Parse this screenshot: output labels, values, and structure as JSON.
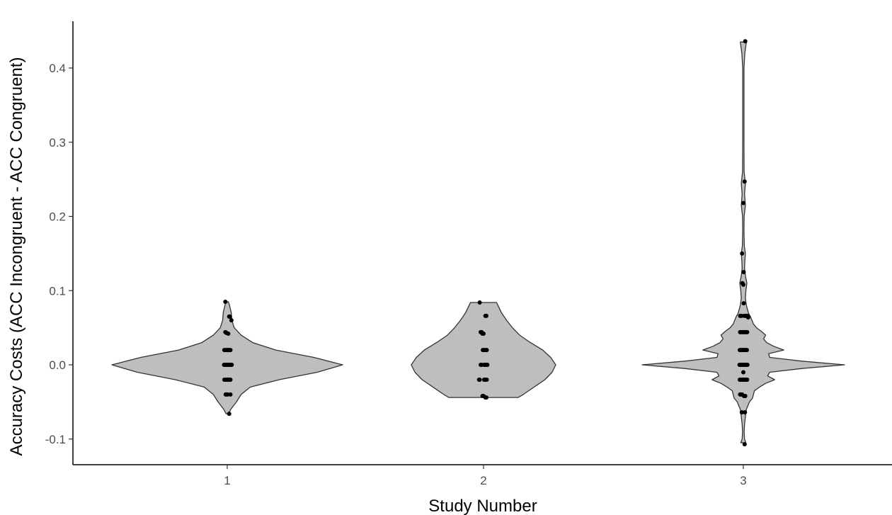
{
  "chart_data": {
    "type": "violin",
    "title": "",
    "xlabel": "Study Number",
    "ylabel": "Accuracy Costs (ACC Incongruent - ACC Congruent)",
    "categories": [
      "1",
      "2",
      "3"
    ],
    "ylim": [
      -0.13,
      0.465
    ],
    "yticks": [
      -0.1,
      0.0,
      0.1,
      0.2,
      0.3,
      0.4
    ],
    "ytick_labels": [
      "-0.1",
      "0.0",
      "0.1",
      "0.2",
      "0.3",
      "0.4"
    ],
    "grid": false,
    "legend": "none",
    "violin_fill": "#bebebe",
    "violin_stroke": "#333333",
    "point_color": "#000000",
    "violins": [
      {
        "category": "1",
        "profile": [
          [
            -0.066,
            0.01
          ],
          [
            -0.06,
            0.03
          ],
          [
            -0.05,
            0.08
          ],
          [
            -0.04,
            0.12
          ],
          [
            -0.03,
            0.2
          ],
          [
            -0.02,
            0.45
          ],
          [
            -0.01,
            0.78
          ],
          [
            0.0,
            1.0
          ],
          [
            0.01,
            0.75
          ],
          [
            0.02,
            0.42
          ],
          [
            0.03,
            0.22
          ],
          [
            0.04,
            0.12
          ],
          [
            0.05,
            0.06
          ],
          [
            0.06,
            0.04
          ],
          [
            0.07,
            0.035
          ],
          [
            0.08,
            0.02
          ],
          [
            0.085,
            0.01
          ]
        ],
        "points": [
          [
            0.085,
            -0.06
          ],
          [
            0.065,
            0.06
          ],
          [
            0.065,
            0.08
          ],
          [
            0.06,
            0.13
          ],
          [
            0.044,
            -0.06
          ],
          [
            0.043,
            -0.02
          ],
          [
            0.042,
            0.03
          ],
          [
            0.02,
            -0.09
          ],
          [
            0.02,
            -0.05
          ],
          [
            0.02,
            -0.02
          ],
          [
            0.02,
            0.01
          ],
          [
            0.02,
            0.04
          ],
          [
            0.02,
            0.07
          ],
          [
            0.02,
            0.1
          ],
          [
            0.0,
            -0.1
          ],
          [
            0.0,
            -0.07
          ],
          [
            0.0,
            -0.04
          ],
          [
            0.0,
            -0.01
          ],
          [
            0.0,
            0.02
          ],
          [
            0.0,
            0.05
          ],
          [
            0.0,
            0.08
          ],
          [
            0.0,
            0.11
          ],
          [
            0.0,
            0.14
          ],
          [
            -0.02,
            -0.09
          ],
          [
            -0.02,
            -0.06
          ],
          [
            -0.02,
            -0.03
          ],
          [
            -0.02,
            0.0
          ],
          [
            -0.02,
            0.03
          ],
          [
            -0.02,
            0.06
          ],
          [
            -0.02,
            0.1
          ],
          [
            -0.04,
            -0.05
          ],
          [
            -0.04,
            -0.02
          ],
          [
            -0.04,
            0.01
          ],
          [
            -0.04,
            0.1
          ],
          [
            -0.066,
            0.06
          ]
        ]
      },
      {
        "category": "2",
        "profile": [
          [
            -0.044,
            0.48
          ],
          [
            -0.04,
            0.55
          ],
          [
            -0.03,
            0.7
          ],
          [
            -0.02,
            0.85
          ],
          [
            -0.01,
            0.95
          ],
          [
            0.0,
            1.0
          ],
          [
            0.01,
            0.93
          ],
          [
            0.02,
            0.82
          ],
          [
            0.03,
            0.65
          ],
          [
            0.04,
            0.5
          ],
          [
            0.05,
            0.4
          ],
          [
            0.06,
            0.32
          ],
          [
            0.07,
            0.25
          ],
          [
            0.08,
            0.2
          ],
          [
            0.084,
            0.18
          ]
        ],
        "points": [
          [
            0.084,
            -0.12
          ],
          [
            0.066,
            0.06
          ],
          [
            0.066,
            0.09
          ],
          [
            0.044,
            -0.09
          ],
          [
            0.044,
            -0.06
          ],
          [
            0.042,
            -0.03
          ],
          [
            0.042,
            0.0
          ],
          [
            0.02,
            -0.02
          ],
          [
            0.02,
            0.02
          ],
          [
            0.02,
            0.06
          ],
          [
            0.02,
            0.1
          ],
          [
            0.0,
            -0.09
          ],
          [
            0.0,
            -0.06
          ],
          [
            0.0,
            0.02
          ],
          [
            0.0,
            0.05
          ],
          [
            0.0,
            0.08
          ],
          [
            0.0,
            0.12
          ],
          [
            -0.02,
            -0.14
          ],
          [
            -0.02,
            -0.12
          ],
          [
            -0.02,
            0.02
          ],
          [
            -0.02,
            0.06
          ],
          [
            -0.02,
            0.1
          ],
          [
            -0.042,
            -0.03
          ],
          [
            -0.042,
            0.0
          ],
          [
            -0.044,
            0.06
          ],
          [
            -0.044,
            0.09
          ]
        ]
      },
      {
        "category": "3",
        "profile": [
          [
            -0.105,
            0.025
          ],
          [
            -0.1,
            0.012
          ],
          [
            -0.09,
            0.008
          ],
          [
            -0.08,
            0.012
          ],
          [
            -0.07,
            0.02
          ],
          [
            -0.06,
            0.03
          ],
          [
            -0.05,
            0.06
          ],
          [
            -0.045,
            0.09
          ],
          [
            -0.04,
            0.1
          ],
          [
            -0.035,
            0.11
          ],
          [
            -0.03,
            0.16
          ],
          [
            -0.025,
            0.22
          ],
          [
            -0.02,
            0.31
          ],
          [
            -0.015,
            0.24
          ],
          [
            -0.01,
            0.26
          ],
          [
            -0.005,
            0.58
          ],
          [
            0.0,
            1.0
          ],
          [
            0.005,
            0.58
          ],
          [
            0.01,
            0.26
          ],
          [
            0.015,
            0.25
          ],
          [
            0.02,
            0.4
          ],
          [
            0.025,
            0.3
          ],
          [
            0.03,
            0.23
          ],
          [
            0.035,
            0.2
          ],
          [
            0.04,
            0.22
          ],
          [
            0.045,
            0.18
          ],
          [
            0.05,
            0.13
          ],
          [
            0.055,
            0.1
          ],
          [
            0.06,
            0.085
          ],
          [
            0.065,
            0.07
          ],
          [
            0.07,
            0.05
          ],
          [
            0.08,
            0.03
          ],
          [
            0.09,
            0.02
          ],
          [
            0.1,
            0.025
          ],
          [
            0.11,
            0.035
          ],
          [
            0.12,
            0.02
          ],
          [
            0.13,
            0.012
          ],
          [
            0.14,
            0.015
          ],
          [
            0.15,
            0.02
          ],
          [
            0.16,
            0.01
          ],
          [
            0.18,
            0.006
          ],
          [
            0.2,
            0.008
          ],
          [
            0.215,
            0.02
          ],
          [
            0.23,
            0.012
          ],
          [
            0.245,
            0.02
          ],
          [
            0.26,
            0.008
          ],
          [
            0.3,
            0.006
          ],
          [
            0.35,
            0.006
          ],
          [
            0.4,
            0.006
          ],
          [
            0.42,
            0.015
          ],
          [
            0.435,
            0.03
          ]
        ],
        "points": [
          [
            0.436,
            0.06
          ],
          [
            0.247,
            0.04
          ],
          [
            0.218,
            0.0
          ],
          [
            0.15,
            -0.04
          ],
          [
            0.125,
            0.01
          ],
          [
            0.11,
            -0.03
          ],
          [
            0.108,
            0.0
          ],
          [
            0.083,
            0.01
          ],
          [
            0.066,
            -0.1
          ],
          [
            0.066,
            -0.06
          ],
          [
            0.066,
            0.03
          ],
          [
            0.066,
            0.07
          ],
          [
            0.066,
            0.13
          ],
          [
            0.064,
            0.15
          ],
          [
            0.044,
            -0.1
          ],
          [
            0.044,
            -0.07
          ],
          [
            0.044,
            -0.03
          ],
          [
            0.044,
            0.0
          ],
          [
            0.044,
            0.04
          ],
          [
            0.044,
            0.08
          ],
          [
            0.044,
            0.12
          ],
          [
            0.02,
            -0.11
          ],
          [
            0.02,
            -0.08
          ],
          [
            0.02,
            -0.05
          ],
          [
            0.02,
            -0.02
          ],
          [
            0.02,
            0.0
          ],
          [
            0.02,
            0.02
          ],
          [
            0.02,
            0.05
          ],
          [
            0.02,
            0.08
          ],
          [
            0.02,
            0.11
          ],
          [
            0.0,
            -0.12
          ],
          [
            0.0,
            -0.09
          ],
          [
            0.0,
            -0.06
          ],
          [
            0.0,
            -0.03
          ],
          [
            0.0,
            -0.01
          ],
          [
            0.0,
            0.01
          ],
          [
            0.0,
            0.03
          ],
          [
            0.0,
            0.06
          ],
          [
            0.0,
            0.09
          ],
          [
            0.0,
            0.13
          ],
          [
            -0.01,
            0.0
          ],
          [
            -0.02,
            -0.11
          ],
          [
            -0.02,
            -0.08
          ],
          [
            -0.02,
            -0.05
          ],
          [
            -0.02,
            -0.02
          ],
          [
            -0.02,
            0.01
          ],
          [
            -0.02,
            0.04
          ],
          [
            -0.02,
            0.07
          ],
          [
            -0.02,
            0.1
          ],
          [
            -0.02,
            0.12
          ],
          [
            -0.04,
            -0.1
          ],
          [
            -0.04,
            -0.07
          ],
          [
            -0.04,
            -0.04
          ],
          [
            -0.042,
            0.02
          ],
          [
            -0.042,
            0.06
          ],
          [
            -0.064,
            -0.05
          ],
          [
            -0.064,
            0.05
          ],
          [
            -0.107,
            0.04
          ]
        ]
      }
    ]
  }
}
